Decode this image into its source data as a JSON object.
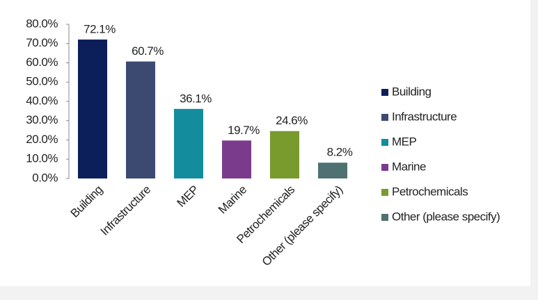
{
  "chart_data": {
    "type": "bar",
    "categories": [
      "Building",
      "Infrastructure",
      "MEP",
      "Marine",
      "Petrochemicals",
      "Other (please specify)"
    ],
    "values": [
      72.1,
      60.7,
      36.1,
      19.7,
      24.6,
      8.2
    ],
    "value_labels": [
      "72.1%",
      "60.7%",
      "36.1%",
      "19.7%",
      "24.6%",
      "8.2%"
    ],
    "colors": [
      "#0c1f5b",
      "#3c4a72",
      "#138c9e",
      "#7b3b8d",
      "#799a2d",
      "#4f7171"
    ],
    "ylim": [
      0,
      80
    ],
    "yticks": [
      {
        "value": 0,
        "label": "0.0%"
      },
      {
        "value": 10,
        "label": "10.0%"
      },
      {
        "value": 20,
        "label": "20.0%"
      },
      {
        "value": 30,
        "label": "30.0%"
      },
      {
        "value": 40,
        "label": "40.0%"
      },
      {
        "value": 50,
        "label": "50.0%"
      },
      {
        "value": 60,
        "label": "60.0%"
      },
      {
        "value": 70,
        "label": "70.0%"
      },
      {
        "value": 80,
        "label": "80.0%"
      }
    ],
    "legend": "right"
  }
}
